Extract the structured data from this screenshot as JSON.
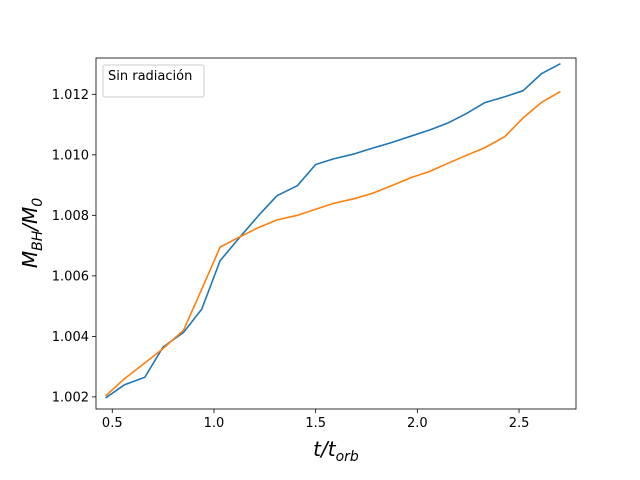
{
  "chart_data": {
    "type": "line",
    "title": "",
    "xlabel": {
      "main": "t/t",
      "sub": "orb"
    },
    "ylabel": {
      "main": "M",
      "sub1": "BH",
      "mid": "/M",
      "sub2": "0"
    },
    "xlim": [
      0.42,
      2.78
    ],
    "ylim": [
      1.0016,
      1.0132
    ],
    "xticks": [
      0.5,
      1.0,
      1.5,
      2.0,
      2.5
    ],
    "xtick_labels": [
      "0.5",
      "1.0",
      "1.5",
      "2.0",
      "2.5"
    ],
    "yticks": [
      1.002,
      1.004,
      1.006,
      1.008,
      1.01,
      1.012
    ],
    "ytick_labels": [
      "1.002",
      "1.004",
      "1.006",
      "1.008",
      "1.010",
      "1.012"
    ],
    "grid": false,
    "legend": {
      "position": "upper-left",
      "entries": [
        "Sin radiación"
      ]
    },
    "series": [
      {
        "color": "#1f77b4",
        "x": [
          0.47,
          0.56,
          0.66,
          0.75,
          0.85,
          0.94,
          1.03,
          1.13,
          1.22,
          1.31,
          1.41,
          1.5,
          1.59,
          1.69,
          1.78,
          1.87,
          1.97,
          2.06,
          2.15,
          2.24,
          2.33,
          2.43,
          2.52,
          2.61,
          2.7
        ],
        "values": [
          1.00198,
          1.0024,
          1.00265,
          1.00365,
          1.00413,
          1.0049,
          1.0065,
          1.0073,
          1.008,
          1.00865,
          1.00898,
          1.00968,
          1.00987,
          1.01003,
          1.01022,
          1.0104,
          1.01062,
          1.01082,
          1.01105,
          1.01136,
          1.01172,
          1.01192,
          1.01212,
          1.01268,
          1.013
        ]
      },
      {
        "color": "#ff7f0e",
        "x": [
          0.47,
          0.56,
          0.66,
          0.75,
          0.85,
          0.94,
          1.03,
          1.13,
          1.22,
          1.31,
          1.41,
          1.5,
          1.59,
          1.69,
          1.78,
          1.87,
          1.97,
          2.06,
          2.15,
          2.24,
          2.33,
          2.43,
          2.52,
          2.61,
          2.7
        ],
        "values": [
          1.00205,
          1.0026,
          1.00312,
          1.0036,
          1.0042,
          1.00556,
          1.00695,
          1.0073,
          1.0076,
          1.00785,
          1.008,
          1.0082,
          1.0084,
          1.00855,
          1.00873,
          1.00897,
          1.00925,
          1.00945,
          1.00972,
          1.00998,
          1.01023,
          1.0106,
          1.01122,
          1.01173,
          1.01208
        ]
      }
    ]
  }
}
